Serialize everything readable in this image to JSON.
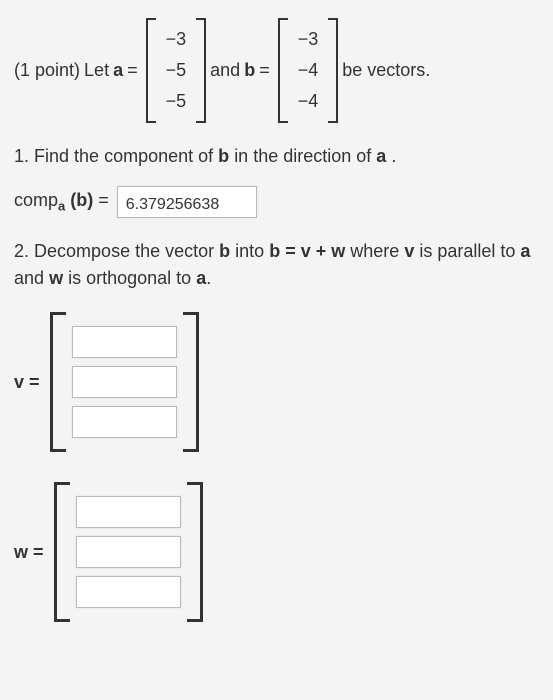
{
  "points_label": "(1 point)",
  "let_text": "Let",
  "var_a": "a",
  "eq": "=",
  "and_text": "and",
  "var_b": "b",
  "tail_text": "be vectors.",
  "vector_a": [
    "−3",
    "−5",
    "−5"
  ],
  "vector_b": [
    "−3",
    "−4",
    "−4"
  ],
  "q1": {
    "number": "1.",
    "text": "Find the component of",
    "b": "b",
    "mid": "in the direction of",
    "a": "a",
    "dot": "."
  },
  "comp": {
    "label_prefix": "comp",
    "sub": "a",
    "arg": "(b)",
    "value": "6.379256638"
  },
  "q2": {
    "number": "2.",
    "text1": "Decompose the vector",
    "b": "b",
    "text2": "into",
    "eq": "b = v + w",
    "text3": "where",
    "v": "v",
    "text4": "is parallel to",
    "a": "a",
    "text5": "and",
    "w": "w",
    "text6": "is orthogonal to",
    "a2": "a",
    "dot": "."
  },
  "v_label": "v =",
  "w_label": "w =",
  "v_values": [
    "",
    "",
    ""
  ],
  "w_values": [
    "",
    "",
    ""
  ]
}
